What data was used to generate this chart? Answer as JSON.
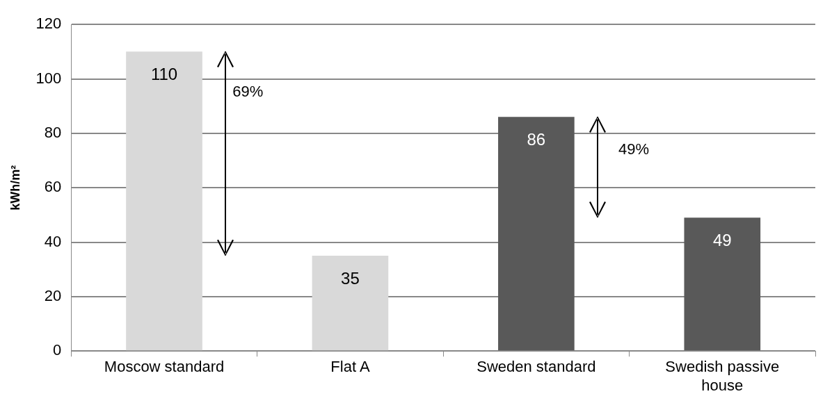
{
  "chart_data": {
    "type": "bar",
    "ylabel": "kWh/m²",
    "categories": [
      "Moscow standard",
      "Flat A",
      "Sweden standard",
      "Swedish passive house"
    ],
    "values": [
      110,
      35,
      86,
      49
    ],
    "colors": [
      "#d9d9d9",
      "#d9d9d9",
      "#595959",
      "#595959"
    ],
    "ylim": [
      0,
      120
    ],
    "yticks": [
      0,
      20,
      40,
      60,
      80,
      100,
      120
    ],
    "grid": "y",
    "data_labels": true,
    "legend": false,
    "annotations": [
      "69%",
      "49%"
    ]
  }
}
